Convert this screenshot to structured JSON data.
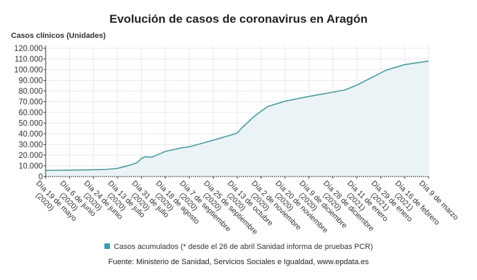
{
  "chart_data": {
    "type": "area",
    "title": "Evolución de casos de coronavirus en Aragón",
    "ylabel": "Casos clínicos (Unidades)",
    "xlabel": "",
    "ylim": [
      0,
      120000
    ],
    "yticks": [
      "0",
      "10.000",
      "20.000",
      "30.000",
      "40.000",
      "50.000",
      "60.000",
      "70.000",
      "80.000",
      "90.000",
      "100.000",
      "110.000",
      "120.000"
    ],
    "grid": true,
    "legend_position": "bottom",
    "xticks": [
      {
        "date": "2020-05-19",
        "label": "Día 19 de mayo",
        "year": "(2020)"
      },
      {
        "date": "2020-06-06",
        "label": "Día 6 de junio",
        "year": "(2020)"
      },
      {
        "date": "2020-06-24",
        "label": "Día 24 de junio",
        "year": "(2020)"
      },
      {
        "date": "2020-07-13",
        "label": "Día 13 de julio",
        "year": "(2020)"
      },
      {
        "date": "2020-07-31",
        "label": "Día 31 de julio",
        "year": "(2020)"
      },
      {
        "date": "2020-08-18",
        "label": "Día 18 de agosto",
        "year": "(2020)"
      },
      {
        "date": "2020-09-07",
        "label": "Día 7 de septiembre",
        "year": "(2020)"
      },
      {
        "date": "2020-09-25",
        "label": "Día 25 de septiembre",
        "year": "(2020)"
      },
      {
        "date": "2020-10-13",
        "label": "Día 13 de octubre",
        "year": "(2020)"
      },
      {
        "date": "2020-11-02",
        "label": "Día 2 de noviembre",
        "year": "(2020)"
      },
      {
        "date": "2020-11-20",
        "label": "Día 20 de noviembre",
        "year": "(2020)"
      },
      {
        "date": "2020-12-09",
        "label": "Día 9 de diciembre",
        "year": "(2020)"
      },
      {
        "date": "2020-12-28",
        "label": "Día 28 de diciembre",
        "year": "(2020)"
      },
      {
        "date": "2021-01-11",
        "label": "Día 11 de enero",
        "year": "(2021)"
      },
      {
        "date": "2021-01-29",
        "label": "Día 29 de enero",
        "year": "(2021)"
      },
      {
        "date": "2021-02-16",
        "label": "Día 16 de febrero",
        "year": "(2021)"
      },
      {
        "date": "2021-03-09",
        "label": "Día 9 de marzo",
        "year": ""
      }
    ],
    "series": [
      {
        "name": "Casos acumulados (* desde el 26 de abril Sanidad informa de pruebas PCR)",
        "color": "#4a9a9e",
        "fill": "#eaf4f7",
        "points": [
          [
            "2020-05-19",
            5800
          ],
          [
            "2020-06-06",
            6000
          ],
          [
            "2020-06-24",
            6300
          ],
          [
            "2020-07-05",
            6800
          ],
          [
            "2020-07-13",
            7600
          ],
          [
            "2020-07-22",
            10500
          ],
          [
            "2020-07-28",
            13000
          ],
          [
            "2020-07-31",
            17000
          ],
          [
            "2020-08-03",
            18500
          ],
          [
            "2020-08-08",
            18200
          ],
          [
            "2020-08-18",
            23500
          ],
          [
            "2020-09-01",
            27000
          ],
          [
            "2020-09-07",
            27800
          ],
          [
            "2020-09-25",
            34000
          ],
          [
            "2020-10-13",
            40600
          ],
          [
            "2020-10-17",
            45500
          ],
          [
            "2020-10-27",
            56000
          ],
          [
            "2020-11-02",
            61000
          ],
          [
            "2020-11-07",
            65500
          ],
          [
            "2020-11-20",
            70500
          ],
          [
            "2020-12-09",
            75000
          ],
          [
            "2020-12-28",
            79000
          ],
          [
            "2021-01-04",
            81000
          ],
          [
            "2021-01-11",
            85500
          ],
          [
            "2021-01-29",
            97000
          ],
          [
            "2021-02-02",
            99500
          ],
          [
            "2021-02-16",
            104700
          ],
          [
            "2021-03-09",
            108000
          ]
        ]
      }
    ]
  },
  "source": "Fuente: Ministerio de Sanidad, Servicios Sociales e Igualdad, www.epdata.es"
}
